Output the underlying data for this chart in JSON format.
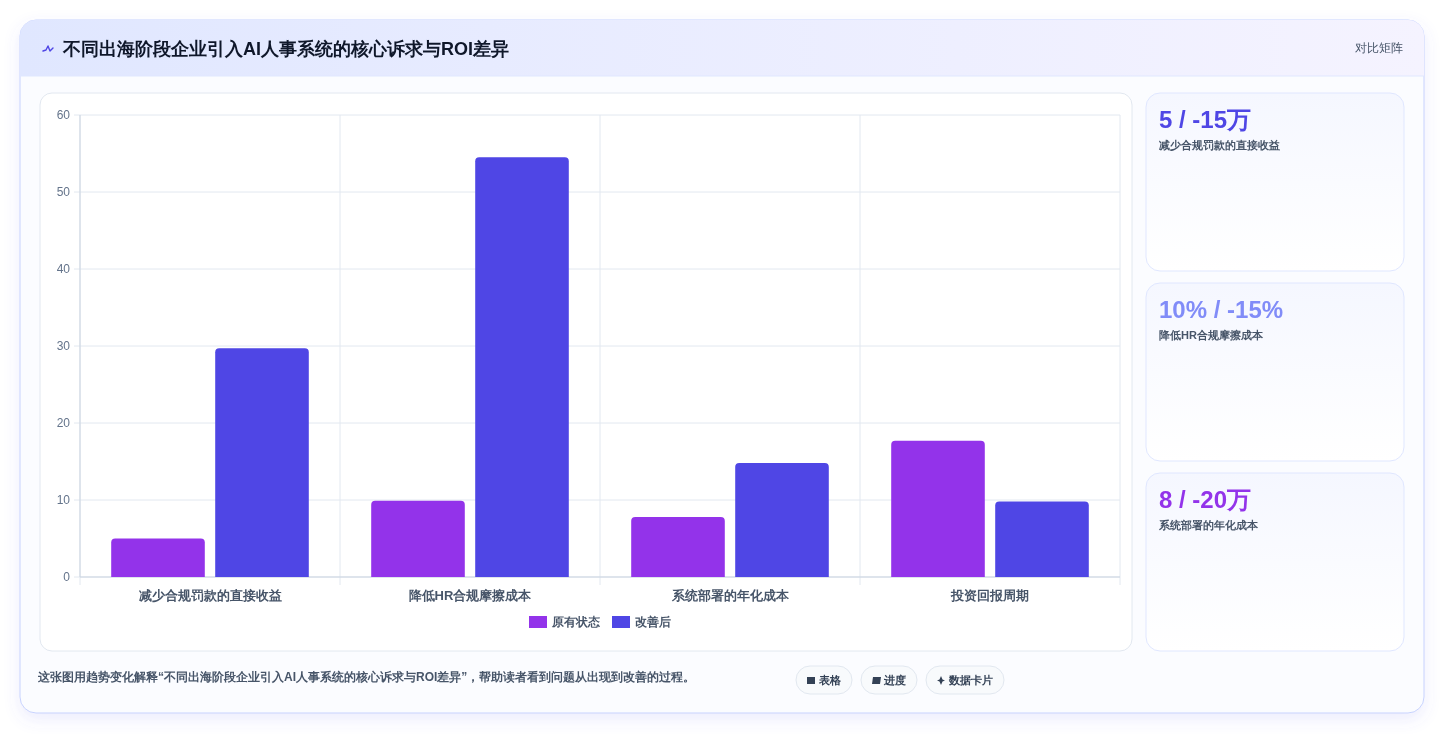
{
  "chart_data": [
    {
      "type": "bar",
      "title": "不同出海阶段企业引入AI人事系统的核心诉求与ROI差异",
      "categories": [
        "减少合规罚款的直接收益",
        "降低HR合规摩擦成本",
        "系统部署的年化成本",
        "投资回报周期"
      ],
      "series": [
        {
          "name": "原有状态",
          "color": "#9333ea",
          "values": [
            5,
            9.9,
            7.8,
            17.7
          ]
        },
        {
          "name": "改善后",
          "color": "#4f46e5",
          "values": [
            29.7,
            54.5,
            14.8,
            9.8
          ]
        }
      ],
      "ylim": [
        0,
        60
      ],
      "yticks": [
        0,
        10,
        20,
        30,
        40,
        50,
        60
      ],
      "grid": true,
      "legend": "bottom",
      "annotations": [
        "这张图用趋势变化解释“不同出海阶段企业引入AI人事系统的核心诉求与ROI差异”，帮助读者看到问题从出现到改善的过程。",
        "表格",
        "进度",
        "数据卡片"
      ]
    },
    {
      "type": "other",
      "subtitle": "对比矩阵",
      "annotations": [
        "5 / -15万",
        "减少合规罚款的直接收益",
        "10% / -15%",
        "降低HR合规摩擦成本",
        "8 / -20万",
        "系统部署的年化成本"
      ]
    }
  ]
}
